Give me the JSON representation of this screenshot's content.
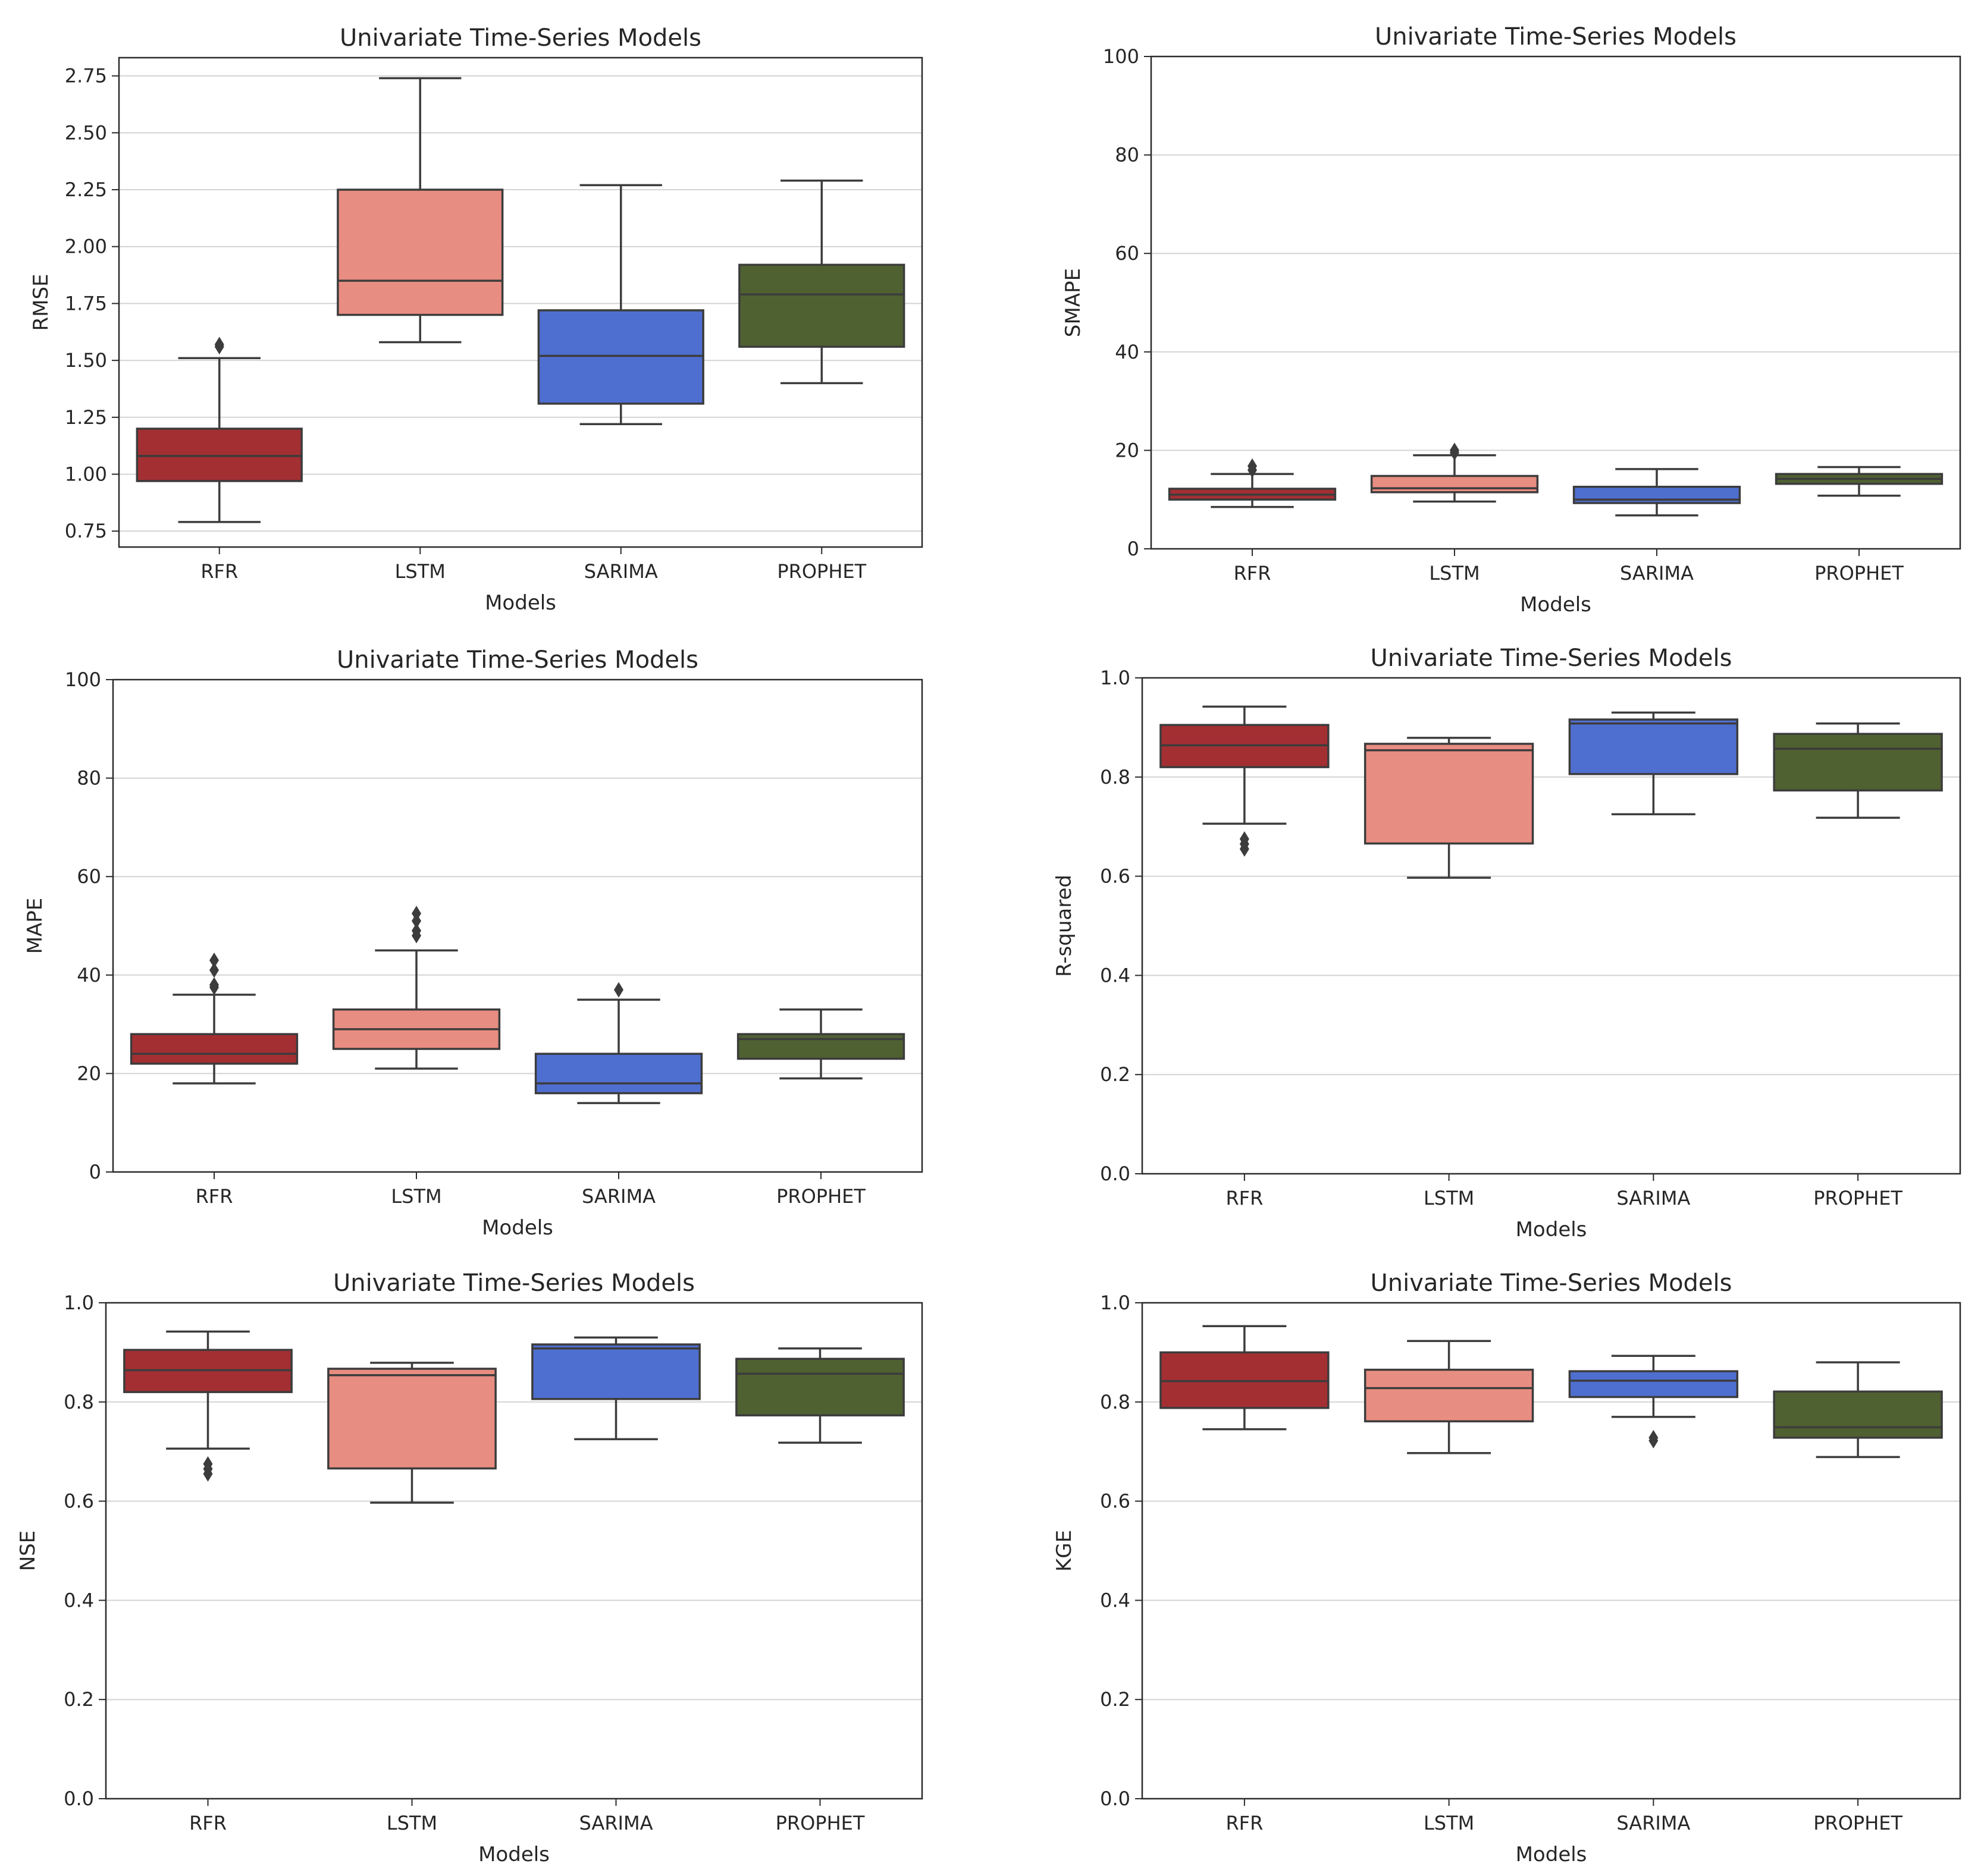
{
  "colors": {
    "RFR": "#a32f33",
    "LSTM": "#e88d81",
    "SARIMA": "#4f6fd0",
    "PROPHET": "#4f6131",
    "line": "#3c3c3c",
    "grid": "#d4d4d4",
    "frame": "#2b2b2b"
  },
  "chart_data": [
    {
      "type": "box",
      "title": "Univariate Time-Series Models",
      "xlabel": "Models",
      "ylabel": "RMSE",
      "categories": [
        "RFR",
        "LSTM",
        "SARIMA",
        "PROPHET"
      ],
      "ylim": [
        0.68,
        2.83
      ],
      "yticks": [
        0.75,
        1.0,
        1.25,
        1.5,
        1.75,
        2.0,
        2.25,
        2.5,
        2.75
      ],
      "ytick_labels": [
        "0.75",
        "1.00",
        "1.25",
        "1.50",
        "1.75",
        "2.00",
        "2.25",
        "2.50",
        "2.75"
      ],
      "boxes": [
        {
          "min": 0.79,
          "q1": 0.97,
          "median": 1.08,
          "q3": 1.2,
          "max": 1.51,
          "outliers": [
            1.56,
            1.57
          ]
        },
        {
          "min": 1.58,
          "q1": 1.7,
          "median": 1.85,
          "q3": 2.25,
          "max": 2.74,
          "outliers": []
        },
        {
          "min": 1.22,
          "q1": 1.31,
          "median": 1.52,
          "q3": 1.72,
          "max": 2.27,
          "outliers": []
        },
        {
          "min": 1.4,
          "q1": 1.56,
          "median": 1.79,
          "q3": 1.92,
          "max": 2.29,
          "outliers": []
        }
      ]
    },
    {
      "type": "box",
      "title": "Univariate Time-Series Models",
      "xlabel": "Models",
      "ylabel": "SMAPE",
      "categories": [
        "RFR",
        "LSTM",
        "SARIMA",
        "PROPHET"
      ],
      "ylim": [
        0,
        100
      ],
      "yticks": [
        0,
        20,
        40,
        60,
        80,
        100
      ],
      "ytick_labels": [
        "0",
        "20",
        "40",
        "60",
        "80",
        "100"
      ],
      "boxes": [
        {
          "min": 8.5,
          "q1": 10,
          "median": 11,
          "q3": 12.2,
          "max": 15.2,
          "outliers": [
            16,
            16.8
          ]
        },
        {
          "min": 9.6,
          "q1": 11.5,
          "median": 12.3,
          "q3": 14.8,
          "max": 19,
          "outliers": [
            19.5,
            20
          ]
        },
        {
          "min": 6.8,
          "q1": 9.3,
          "median": 10,
          "q3": 12.6,
          "max": 16.2,
          "outliers": []
        },
        {
          "min": 10.8,
          "q1": 13.2,
          "median": 14.2,
          "q3": 15.2,
          "max": 16.6,
          "outliers": []
        }
      ]
    },
    {
      "type": "box",
      "title": "Univariate Time-Series Models",
      "xlabel": "Models",
      "ylabel": "MAPE",
      "categories": [
        "RFR",
        "LSTM",
        "SARIMA",
        "PROPHET"
      ],
      "ylim": [
        0,
        100
      ],
      "yticks": [
        0,
        20,
        40,
        60,
        80,
        100
      ],
      "ytick_labels": [
        "0",
        "20",
        "40",
        "60",
        "80",
        "100"
      ],
      "boxes": [
        {
          "min": 18,
          "q1": 22,
          "median": 24,
          "q3": 28,
          "max": 36,
          "outliers": [
            37.5,
            38,
            41,
            43
          ]
        },
        {
          "min": 21,
          "q1": 25,
          "median": 29,
          "q3": 33,
          "max": 45,
          "outliers": [
            48,
            49,
            51,
            52.5
          ]
        },
        {
          "min": 14,
          "q1": 16,
          "median": 18,
          "q3": 24,
          "max": 35,
          "outliers": [
            37
          ]
        },
        {
          "min": 19,
          "q1": 23,
          "median": 27,
          "q3": 28,
          "max": 33,
          "outliers": []
        }
      ]
    },
    {
      "type": "box",
      "title": "Univariate Time-Series Models",
      "xlabel": "Models",
      "ylabel": "R-squared",
      "categories": [
        "RFR",
        "LSTM",
        "SARIMA",
        "PROPHET"
      ],
      "ylim": [
        0,
        1.0
      ],
      "yticks": [
        0,
        0.2,
        0.4,
        0.6,
        0.8,
        1.0
      ],
      "ytick_labels": [
        "0.0",
        "0.2",
        "0.4",
        "0.6",
        "0.8",
        "1.0"
      ],
      "boxes": [
        {
          "min": 0.706,
          "q1": 0.82,
          "median": 0.864,
          "q3": 0.905,
          "max": 0.942,
          "outliers": [
            0.655,
            0.665,
            0.675
          ]
        },
        {
          "min": 0.597,
          "q1": 0.666,
          "median": 0.854,
          "q3": 0.867,
          "max": 0.879,
          "outliers": []
        },
        {
          "min": 0.725,
          "q1": 0.806,
          "median": 0.908,
          "q3": 0.916,
          "max": 0.93,
          "outliers": []
        },
        {
          "min": 0.718,
          "q1": 0.773,
          "median": 0.857,
          "q3": 0.887,
          "max": 0.908,
          "outliers": []
        }
      ]
    },
    {
      "type": "box",
      "title": "Univariate Time-Series Models",
      "xlabel": "Models",
      "ylabel": "NSE",
      "categories": [
        "RFR",
        "LSTM",
        "SARIMA",
        "PROPHET"
      ],
      "ylim": [
        0,
        1.0
      ],
      "yticks": [
        0,
        0.2,
        0.4,
        0.6,
        0.8,
        1.0
      ],
      "ytick_labels": [
        "0.0",
        "0.2",
        "0.4",
        "0.6",
        "0.8",
        "1.0"
      ],
      "boxes": [
        {
          "min": 0.706,
          "q1": 0.82,
          "median": 0.864,
          "q3": 0.905,
          "max": 0.942,
          "outliers": [
            0.655,
            0.665,
            0.675
          ]
        },
        {
          "min": 0.597,
          "q1": 0.666,
          "median": 0.854,
          "q3": 0.867,
          "max": 0.879,
          "outliers": []
        },
        {
          "min": 0.725,
          "q1": 0.806,
          "median": 0.908,
          "q3": 0.916,
          "max": 0.93,
          "outliers": []
        },
        {
          "min": 0.718,
          "q1": 0.773,
          "median": 0.857,
          "q3": 0.887,
          "max": 0.908,
          "outliers": []
        }
      ]
    },
    {
      "type": "box",
      "title": "Univariate Time-Series Models",
      "xlabel": "Models",
      "ylabel": "KGE",
      "categories": [
        "RFR",
        "LSTM",
        "SARIMA",
        "PROPHET"
      ],
      "ylim": [
        0,
        1.0
      ],
      "yticks": [
        0,
        0.2,
        0.4,
        0.6,
        0.8,
        1.0
      ],
      "ytick_labels": [
        "0.0",
        "0.2",
        "0.4",
        "0.6",
        "0.8",
        "1.0"
      ],
      "boxes": [
        {
          "min": 0.745,
          "q1": 0.788,
          "median": 0.842,
          "q3": 0.9,
          "max": 0.953,
          "outliers": []
        },
        {
          "min": 0.697,
          "q1": 0.761,
          "median": 0.828,
          "q3": 0.865,
          "max": 0.923,
          "outliers": []
        },
        {
          "min": 0.77,
          "q1": 0.81,
          "median": 0.843,
          "q3": 0.862,
          "max": 0.893,
          "outliers": [
            0.722,
            0.728
          ]
        },
        {
          "min": 0.689,
          "q1": 0.728,
          "median": 0.749,
          "q3": 0.821,
          "max": 0.88,
          "outliers": []
        }
      ]
    }
  ]
}
